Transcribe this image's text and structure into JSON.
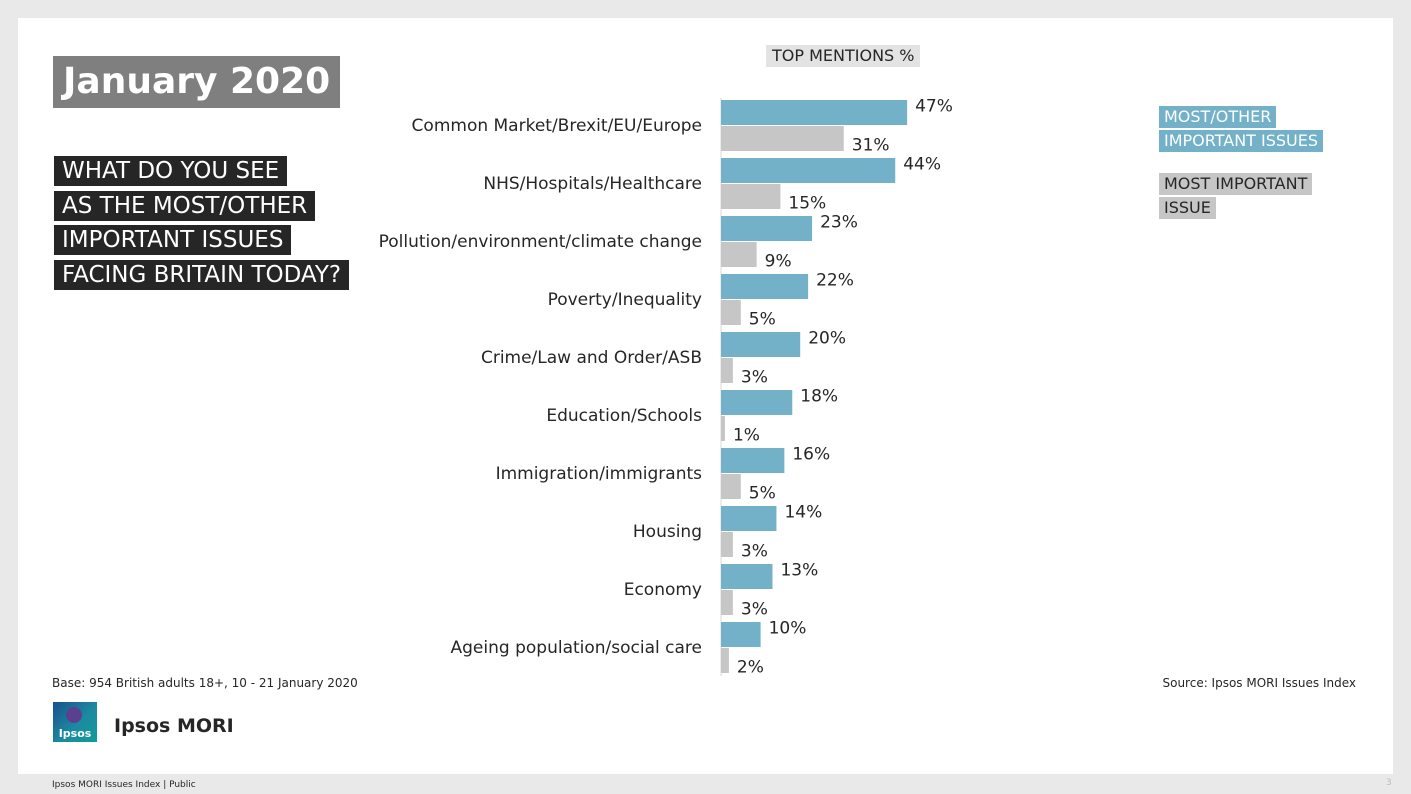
{
  "header": {
    "title": "January 2020",
    "question_lines": [
      "WHAT DO YOU SEE",
      "AS THE MOST/OTHER",
      "IMPORTANT ISSUES",
      "FACING BRITAIN TODAY?"
    ]
  },
  "legend": {
    "most_other": [
      "MOST/OTHER",
      "IMPORTANT ISSUES"
    ],
    "most": [
      "MOST IMPORTANT",
      "ISSUE"
    ]
  },
  "footnotes": {
    "base": "Base: 954 British adults 18+, 10 - 21 January 2020",
    "source": "Source: Ipsos MORI Issues Index"
  },
  "branding": {
    "logo_text": "Ipsos",
    "name": "Ipsos MORI"
  },
  "footer": {
    "text": "Ipsos MORI Issues Index | Public",
    "page_number": "3"
  },
  "colors": {
    "most_other": "#72b1c8",
    "most": "#c6c6c6"
  },
  "chart_data": {
    "type": "bar",
    "orientation": "horizontal",
    "title": "TOP MENTIONS %",
    "categories": [
      "Common Market/Brexit/EU/Europe",
      "NHS/Hospitals/Healthcare",
      "Pollution/environment/climate change",
      "Poverty/Inequality",
      "Crime/Law and Order/ASB",
      "Education/Schools",
      "Immigration/immigrants",
      "Housing",
      "Economy",
      "Ageing population/social care"
    ],
    "series": [
      {
        "name": "MOST/OTHER IMPORTANT ISSUES",
        "color": "#72b1c8",
        "values": [
          47,
          44,
          23,
          22,
          20,
          18,
          16,
          14,
          13,
          10
        ]
      },
      {
        "name": "MOST IMPORTANT ISSUE",
        "color": "#c6c6c6",
        "values": [
          31,
          15,
          9,
          5,
          3,
          1,
          5,
          3,
          3,
          2
        ]
      }
    ],
    "value_suffix": "%",
    "xlim": [
      0,
      100
    ],
    "grid": false,
    "legend_position": "top-right"
  }
}
